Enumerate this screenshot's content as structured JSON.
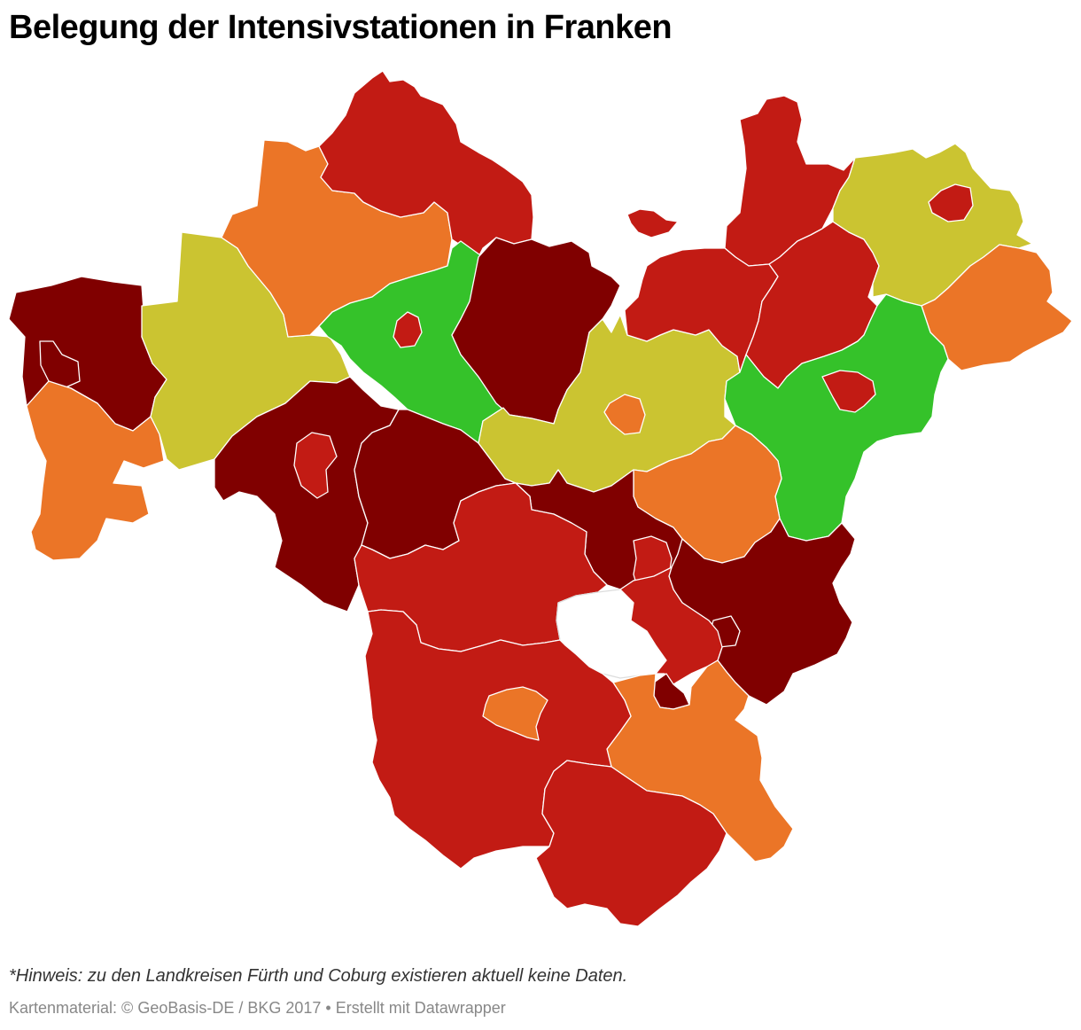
{
  "title": "Belegung der Intensivstationen in Franken",
  "note": "*Hinweis: zu den Landkreisen Fürth und Coburg existieren aktuell keine Daten.",
  "footer": "Kartenmaterial: © GeoBasis-DE / BKG 2017 • Erstellt mit Datawrapper",
  "colors": {
    "level_1_green": "#35c22a",
    "level_2_yellow": "#cbc431",
    "level_3_orange": "#eb7527",
    "level_4_red": "#c21b14",
    "level_5_darkred": "#800000",
    "no_data": "#ffffff",
    "border": "#ffffff"
  }
}
